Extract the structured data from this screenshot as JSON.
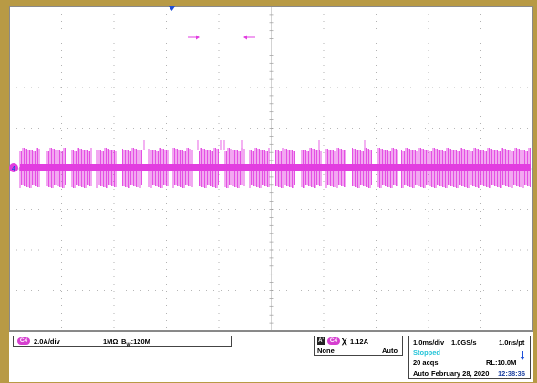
{
  "channel": {
    "tag": "C4",
    "scale": "2.0A/div",
    "impedance": "1MΩ",
    "bandwidth_symbol": "B",
    "bandwidth_sub": "W",
    "bandwidth_value": ":120M",
    "marker": "4"
  },
  "trigger": {
    "mode_tag": "A'",
    "source_tag": "C4",
    "slope_glyph": "ꭓ",
    "level": "1.12A",
    "coupling": "None",
    "sweep": "Auto"
  },
  "acquisition": {
    "time_div": "1.0ms/div",
    "sample_rate": "1.0GS/s",
    "resolution": "1.0ns/pt",
    "state": "Stopped",
    "acqs": "20 acqs",
    "record_length": "RL:10.0M",
    "mode": "Auto",
    "date": "February 28, 2020",
    "time": "12:38:36"
  },
  "colors": {
    "frame": "#b89a45",
    "trace": "#e23de0",
    "grid": "#a0a0a0",
    "stopped": "#24c4d8",
    "time": "#1a3fa0",
    "trigger_marker": "#1f4fd8"
  }
}
